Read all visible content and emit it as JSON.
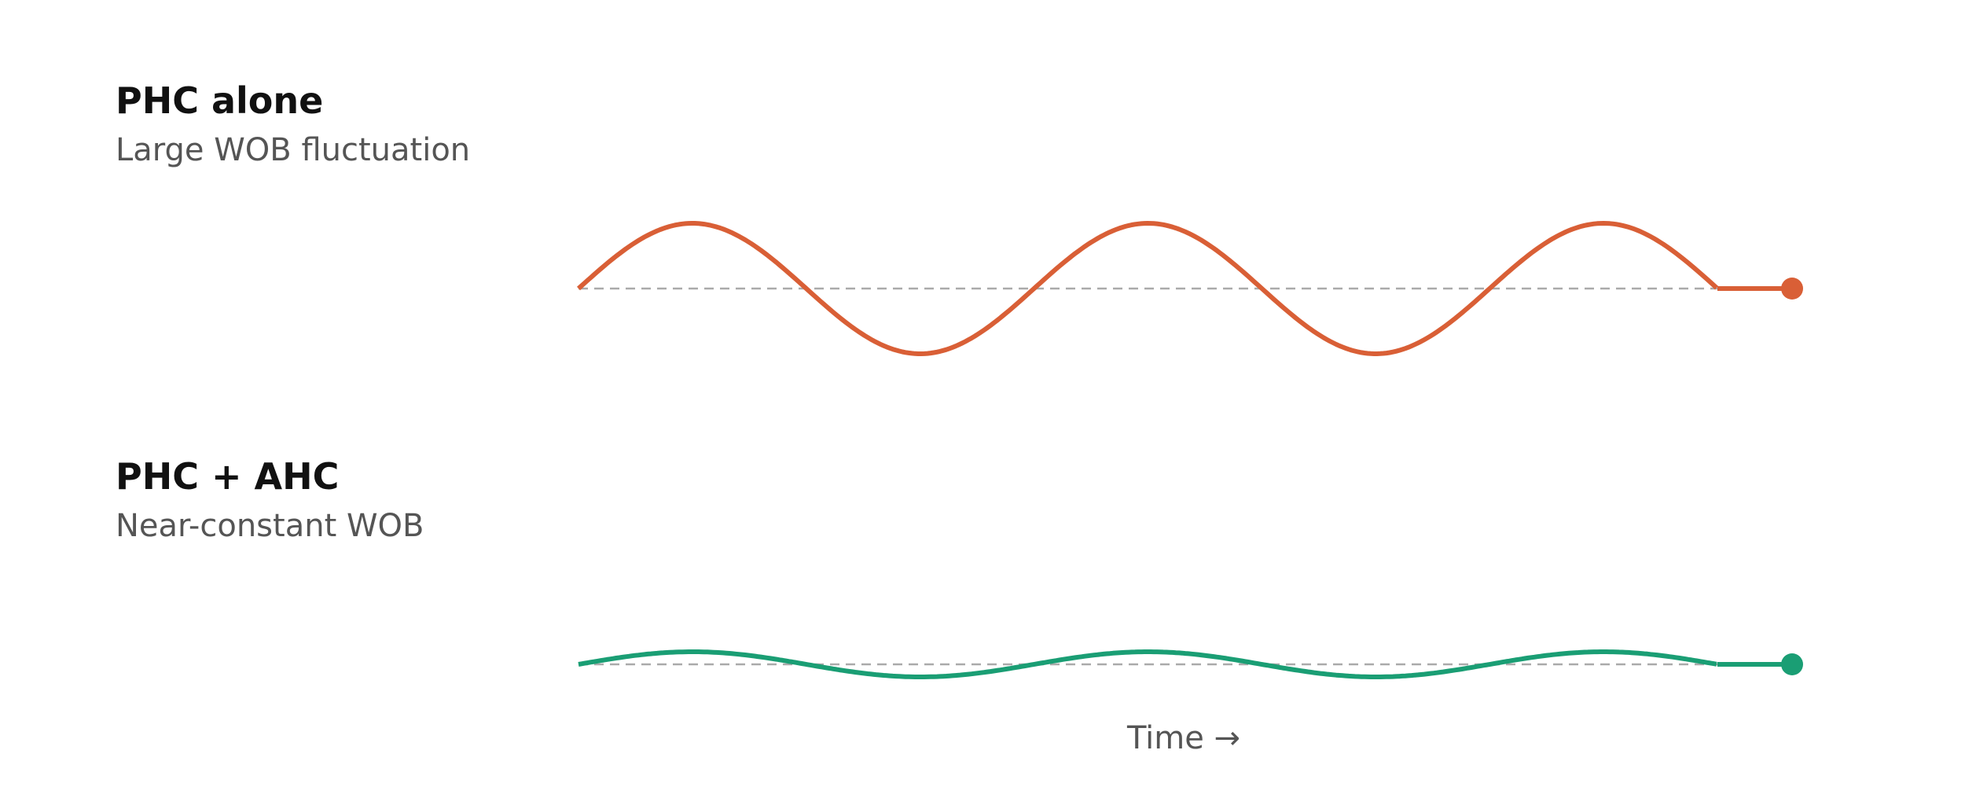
{
  "panels": [
    {
      "title": "PHC alone",
      "subtitle": "Large WOB fluctuation"
    },
    {
      "title": "PHC + AHC",
      "subtitle": "Near-constant WOB"
    }
  ],
  "axis_label": "Time →"
}
